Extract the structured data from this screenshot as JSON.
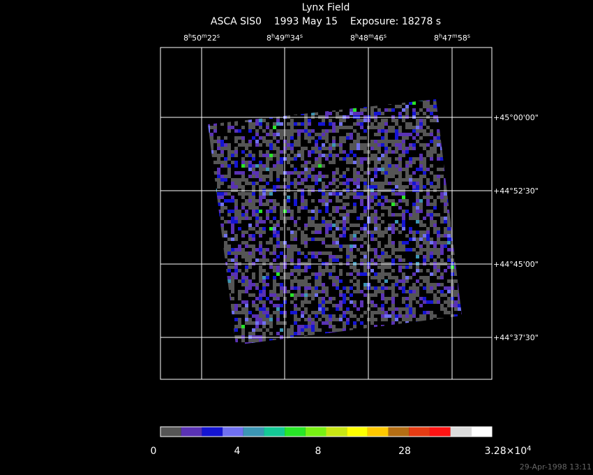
{
  "title": "Lynx Field",
  "subtitle": "ASCA SIS0    1993 May 15    Exposure: 18278 s",
  "ra_labels": [
    [
      "8",
      "h",
      "50",
      "m",
      "22",
      "s"
    ],
    [
      "8",
      "h",
      "49",
      "m",
      "34",
      "s"
    ],
    [
      "8",
      "h",
      "48",
      "m",
      "46",
      "s"
    ],
    [
      "8",
      "h",
      "47",
      "m",
      "58",
      "s"
    ]
  ],
  "dec_labels": [
    "+45°00'00\"",
    "+44°52'30\"",
    "+44°45'00\"",
    "+44°37'30\""
  ],
  "colorbar": {
    "colors": [
      "#555555",
      "#5a32b4",
      "#1414d2",
      "#7070f0",
      "#3c96b4",
      "#14c896",
      "#28e628",
      "#78f014",
      "#c8e614",
      "#ffff00",
      "#ffc800",
      "#b46e14",
      "#e63c14",
      "#ff1414",
      "#dcdcdc",
      "#ffffff"
    ],
    "labels": [
      [
        "0"
      ],
      [
        "4"
      ],
      [
        "8"
      ],
      [
        "28"
      ],
      [
        "3.28×10",
        "4"
      ]
    ]
  },
  "footer": "29-Apr-1998 13:11"
}
